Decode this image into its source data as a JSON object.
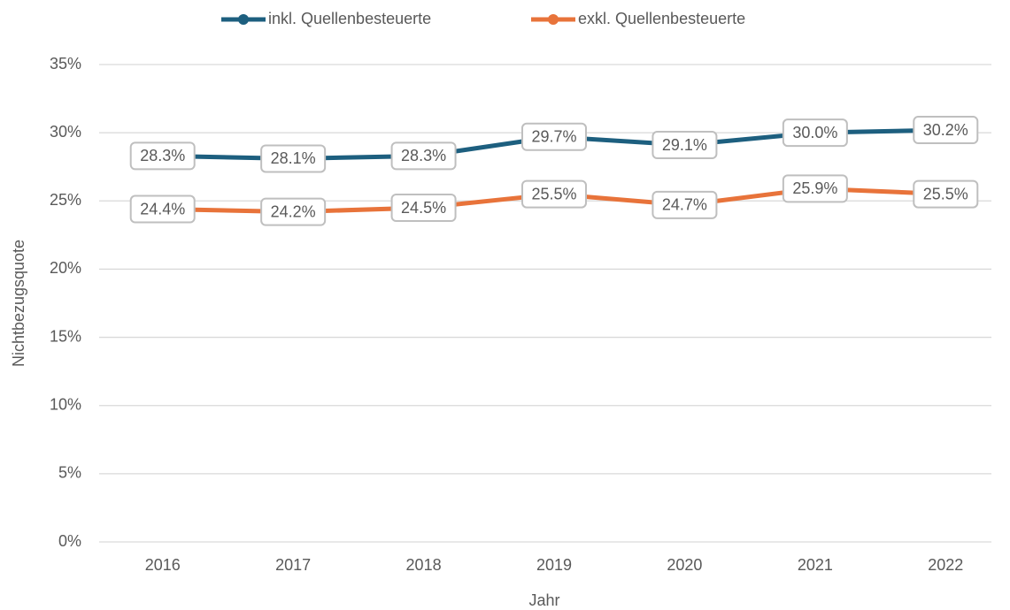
{
  "chart_data": {
    "type": "line",
    "x_label": "Jahr",
    "y_label": "Nichtbezugsquote",
    "categories": [
      "2016",
      "2017",
      "2018",
      "2019",
      "2020",
      "2021",
      "2022"
    ],
    "series": [
      {
        "name": "inkl. Quellenbesteuerte",
        "color": "#1d5f7f",
        "values": [
          28.3,
          28.1,
          28.3,
          29.7,
          29.1,
          30.0,
          30.2
        ],
        "value_labels": [
          "28.3%",
          "28.1%",
          "28.3%",
          "29.7%",
          "29.1%",
          "30.0%",
          "30.2%"
        ]
      },
      {
        "name": "exkl. Quellenbesteuerte",
        "color": "#e8733a",
        "values": [
          24.4,
          24.2,
          24.5,
          25.5,
          24.7,
          25.9,
          25.5
        ],
        "value_labels": [
          "24.4%",
          "24.2%",
          "24.5%",
          "25.5%",
          "24.7%",
          "25.9%",
          "25.5%"
        ]
      }
    ],
    "ylim": [
      0,
      35
    ],
    "yticks": [
      {
        "value": 0,
        "label": "0%"
      },
      {
        "value": 5,
        "label": "5%"
      },
      {
        "value": 10,
        "label": "10%"
      },
      {
        "value": 15,
        "label": "15%"
      },
      {
        "value": 20,
        "label": "20%"
      },
      {
        "value": 25,
        "label": "25%"
      },
      {
        "value": 30,
        "label": "30%"
      },
      {
        "value": 35,
        "label": "35%"
      }
    ],
    "grid": true,
    "legend": "top"
  }
}
